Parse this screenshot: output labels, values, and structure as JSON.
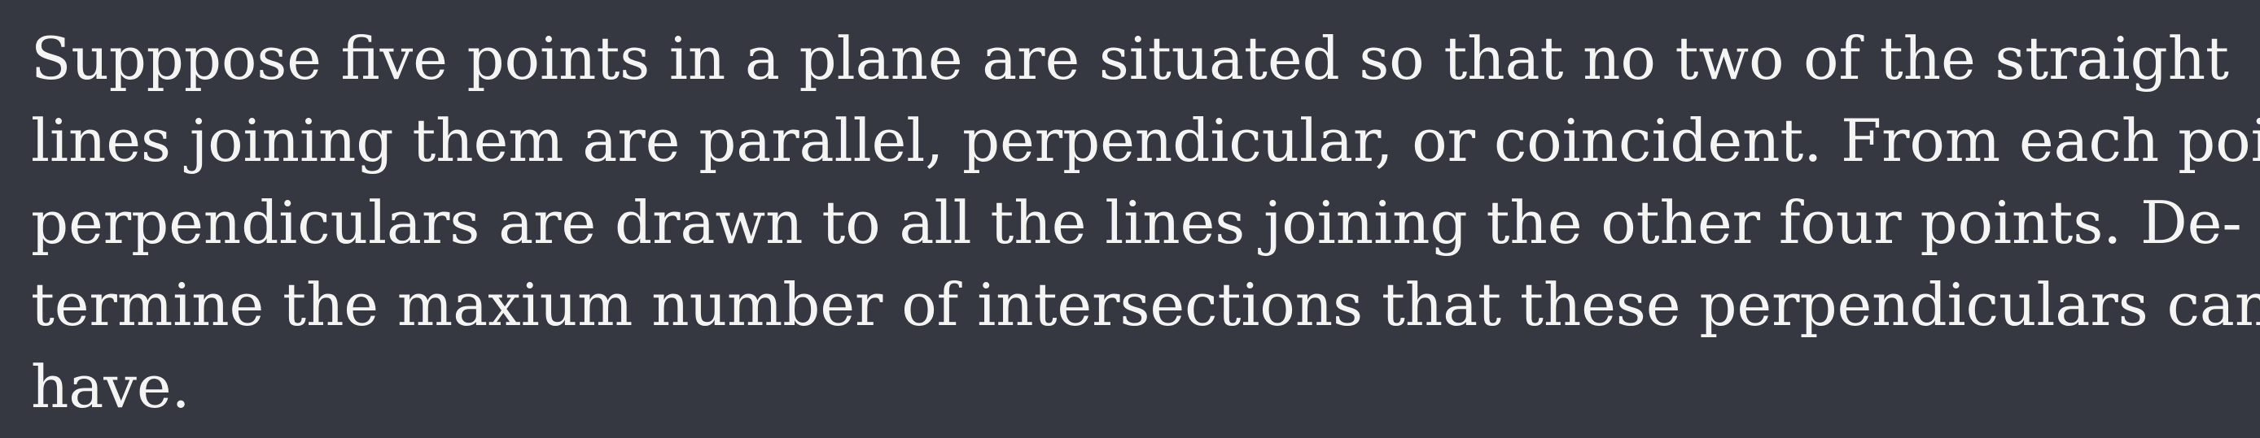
{
  "problem": {
    "lines": [
      "Supppose five points in a plane are situated so that no two of the straight",
      "lines joining them are parallel, perpendicular, or coincident. From each point",
      "perpendiculars are drawn to all the lines joining the other four points. De-",
      "termine the maxium number of intersections that these perpendiculars can",
      "have."
    ]
  }
}
